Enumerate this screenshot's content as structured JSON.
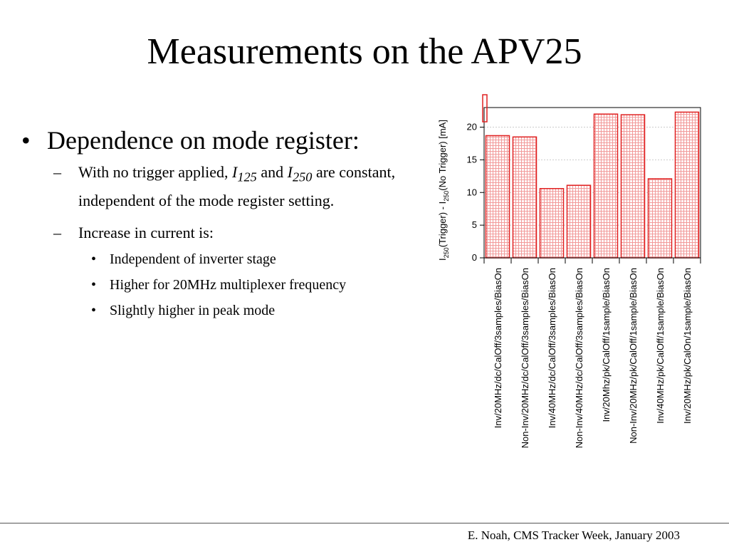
{
  "slide": {
    "title": "Measurements on the APV25",
    "footer": "E. Noah, CMS Tracker Week, January 2003"
  },
  "bullets": {
    "b1": {
      "marker": "•",
      "text": "Dependence on mode register:"
    },
    "s1": {
      "marker": "–",
      "t1": "With no trigger applied, ",
      "i1": "I",
      "i1sub": "125",
      "t2": " and ",
      "i2": "I",
      "i2sub": "250",
      "t3": " are constant, independent of the mode register setting."
    },
    "s2": {
      "marker": "–",
      "text": "Increase in current is:"
    },
    "ss": [
      {
        "marker": "•",
        "text": "Independent of inverter stage"
      },
      {
        "marker": "•",
        "text": "Higher for 20MHz multiplexer frequency"
      },
      {
        "marker": "•",
        "text": "Slightly higher in peak mode"
      }
    ]
  },
  "chart_data": {
    "type": "bar",
    "ylabel_parts": {
      "p1": "I",
      "sub1": "250",
      "p2": "(Trigger) - I",
      "sub2": "250",
      "p3": "(No Trigger) [mA]"
    },
    "ylim": [
      0,
      23
    ],
    "yticks": [
      "0",
      "5",
      "10",
      "15",
      "20"
    ],
    "categories": [
      "Inv/20MHz/dc/CalOff/3samples/BiasOn",
      "Non-Inv/20MHz/dc/CalOff/3samples/BiasOn",
      "Inv/40MHz/dc/CalOff/3samples/BiasOn",
      "Non-Inv/40MHz/dc/CalOff/3samples/BiasOn",
      "Inv/20Mhz/pk/CalOff/1sample/BiasOn",
      "Non-Inv/20MHz/pk/CalOff/1sample/BiasOn",
      "Inv/40MHz/pk/CalOff/1sample/BiasOn",
      "Inv/20MHz/pk/CalOn/1sample/BiasOn"
    ],
    "values": [
      18.7,
      18.5,
      10.6,
      11.1,
      22.0,
      21.9,
      12.1,
      22.3
    ],
    "colors": {
      "bar_edge": "#e02020",
      "bar_fill_grid": "#f29a9a",
      "grid": "#bbbbbb"
    },
    "grid": "horizontal dashed"
  }
}
